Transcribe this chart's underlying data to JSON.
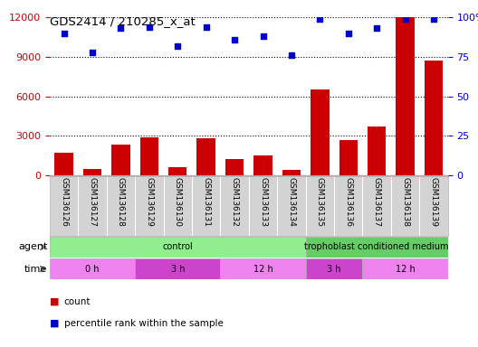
{
  "title": "GDS2414 / 210285_x_at",
  "samples": [
    "GSM136126",
    "GSM136127",
    "GSM136128",
    "GSM136129",
    "GSM136130",
    "GSM136131",
    "GSM136132",
    "GSM136133",
    "GSM136134",
    "GSM136135",
    "GSM136136",
    "GSM136137",
    "GSM136138",
    "GSM136139"
  ],
  "counts": [
    1700,
    500,
    2300,
    2900,
    600,
    2800,
    1200,
    1500,
    400,
    6500,
    2700,
    3700,
    12000,
    8700
  ],
  "percentiles": [
    90,
    78,
    93,
    94,
    82,
    94,
    86,
    88,
    76,
    99,
    90,
    93,
    99,
    99
  ],
  "bar_color": "#cc0000",
  "dot_color": "#0000cc",
  "left_ylim": [
    0,
    12000
  ],
  "left_yticks": [
    0,
    3000,
    6000,
    9000,
    12000
  ],
  "right_ylim": [
    0,
    100
  ],
  "right_yticks": [
    0,
    25,
    50,
    75,
    100
  ],
  "left_ylabel_color": "#cc0000",
  "right_ylabel_color": "#0000cc",
  "agent_segments": [
    {
      "text": "control",
      "start": 0,
      "end": 9,
      "color": "#90ee90"
    },
    {
      "text": "trophoblast conditioned medium",
      "start": 9,
      "end": 14,
      "color": "#66cc66"
    }
  ],
  "time_segments": [
    {
      "text": "0 h",
      "start": 0,
      "end": 3,
      "color": "#ee82ee"
    },
    {
      "text": "3 h",
      "start": 3,
      "end": 6,
      "color": "#cc44cc"
    },
    {
      "text": "12 h",
      "start": 6,
      "end": 9,
      "color": "#ee82ee"
    },
    {
      "text": "3 h",
      "start": 9,
      "end": 11,
      "color": "#cc44cc"
    },
    {
      "text": "12 h",
      "start": 11,
      "end": 14,
      "color": "#ee82ee"
    }
  ],
  "tick_area_bg": "#d3d3d3",
  "background_color": "#ffffff",
  "legend_items": [
    {
      "label": "count",
      "color": "#cc0000"
    },
    {
      "label": "percentile rank within the sample",
      "color": "#0000cc"
    }
  ]
}
